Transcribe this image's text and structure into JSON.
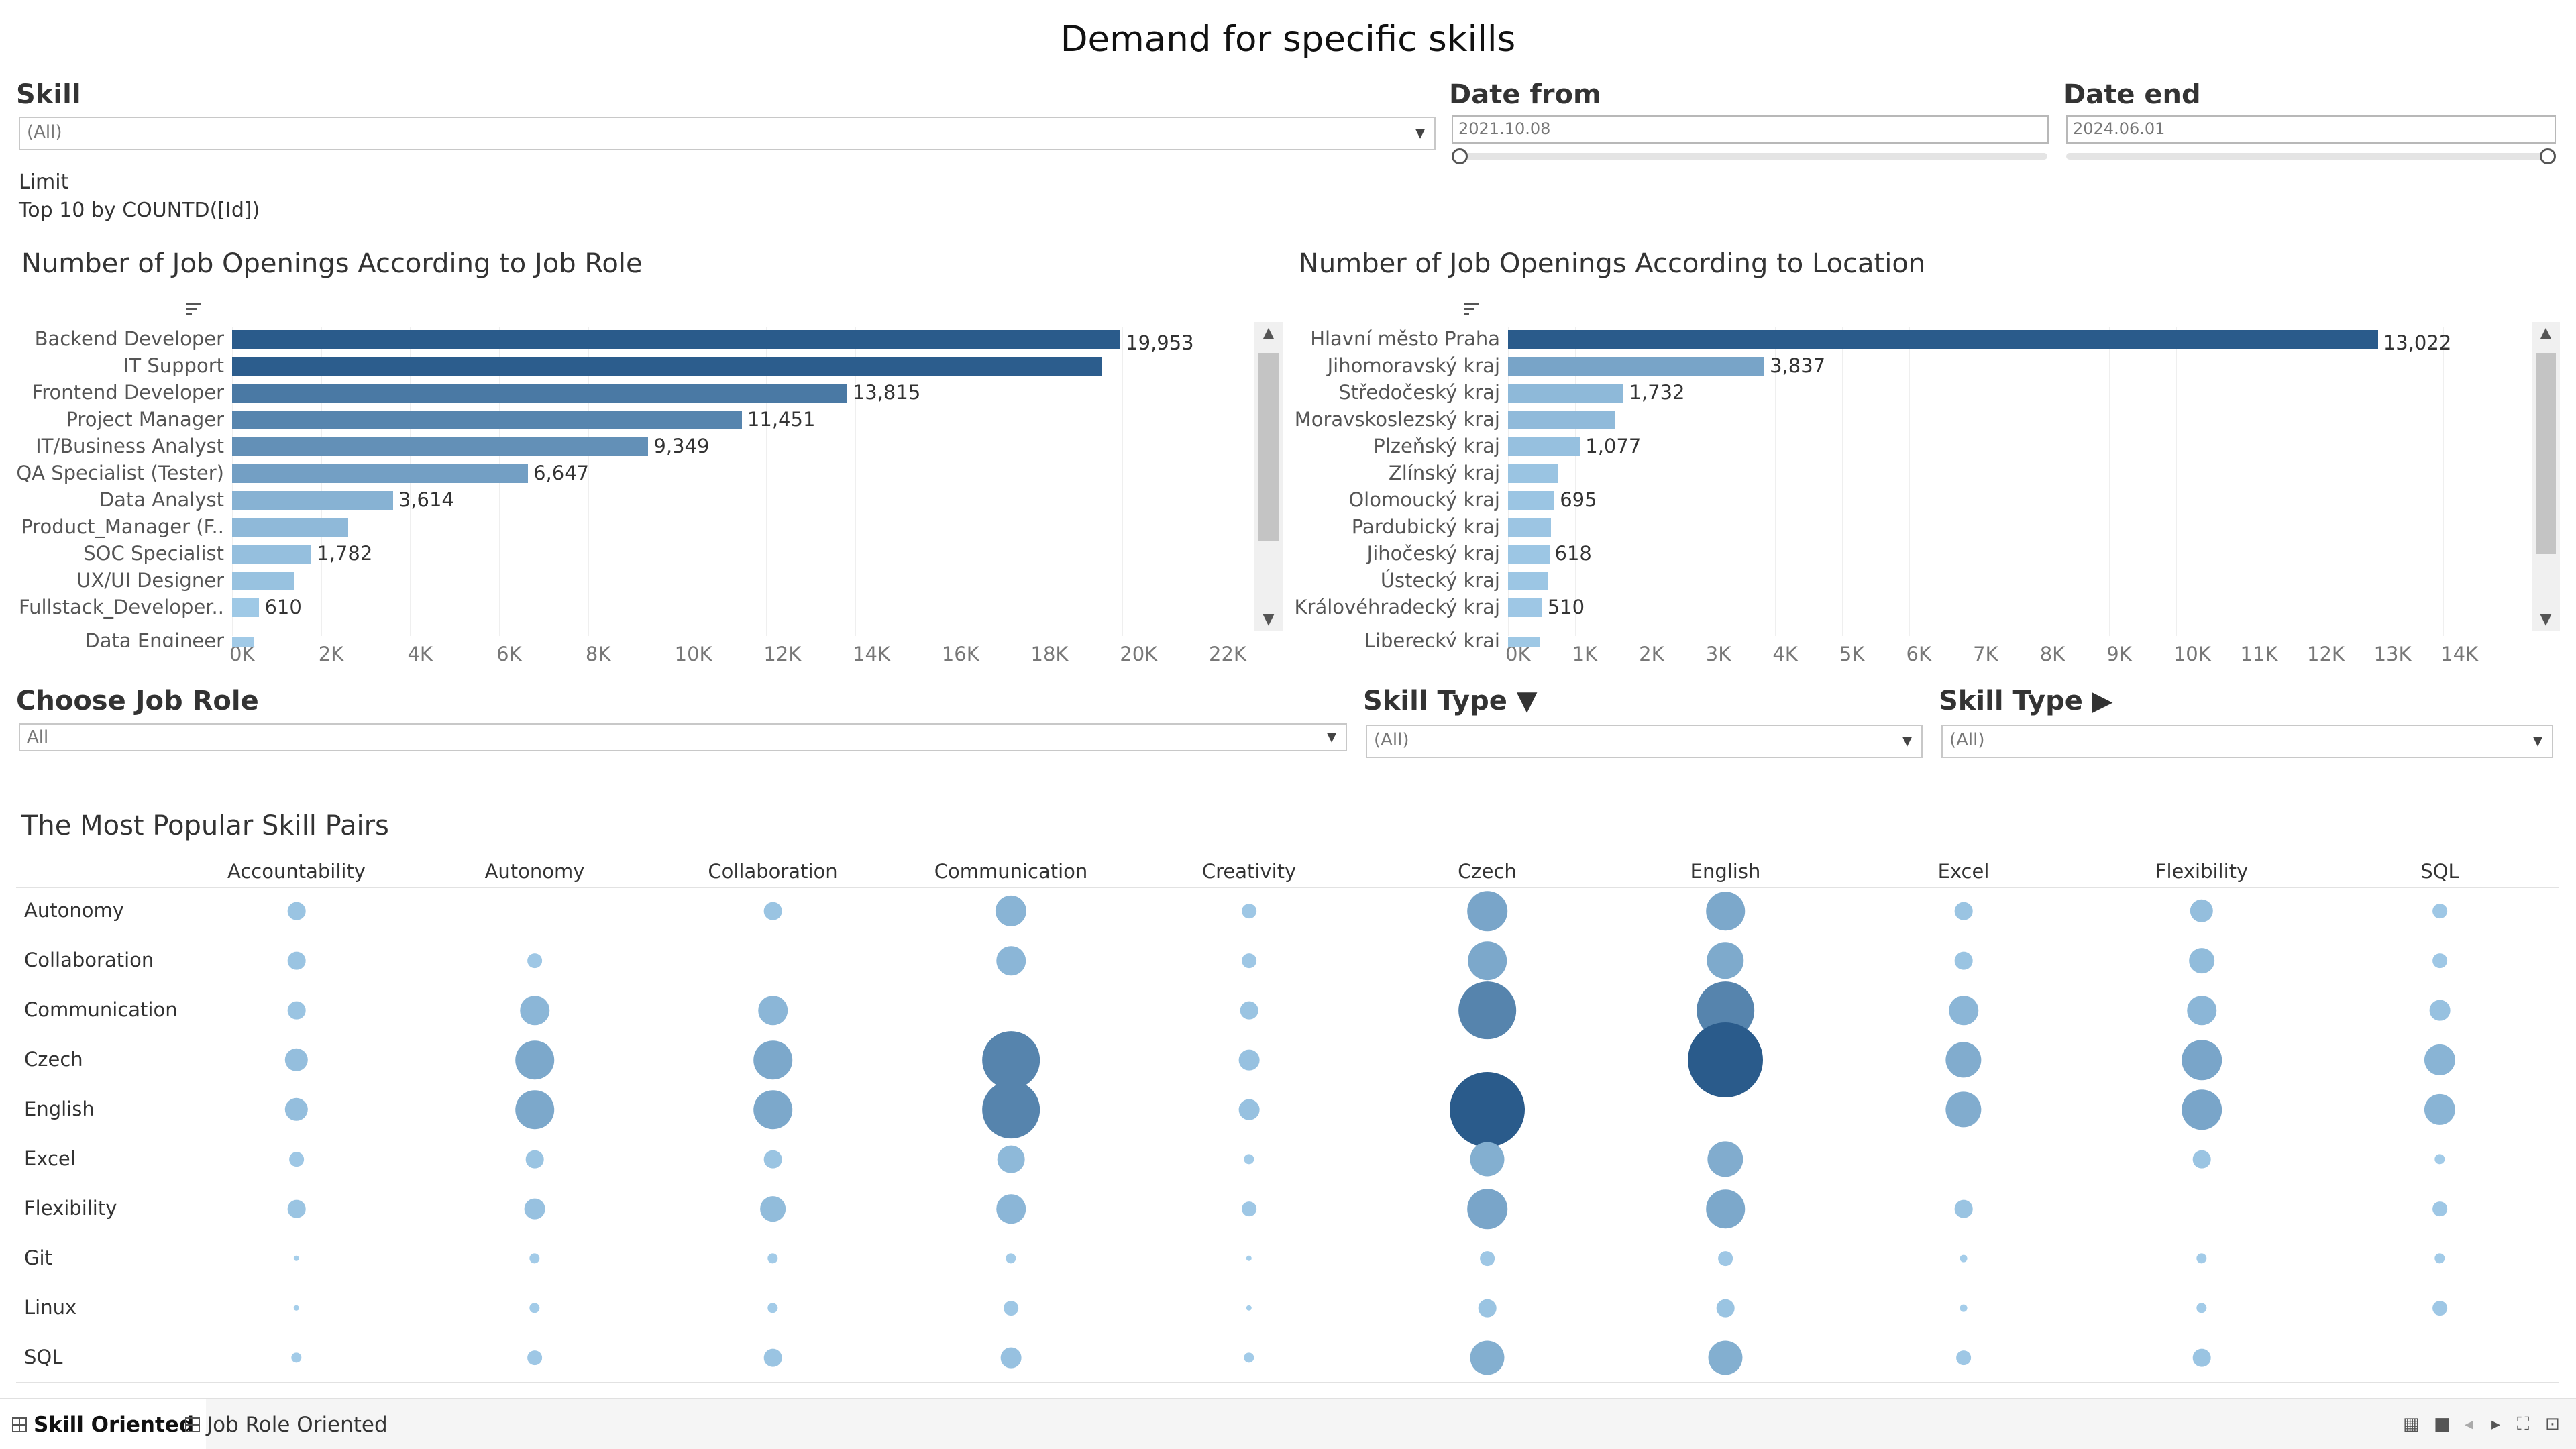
{
  "title": "Demand for specific skills",
  "filters": {
    "skill": {
      "label": "Skill",
      "value": "(All)"
    },
    "date_from": {
      "label": "Date from",
      "value": "2021.10.08"
    },
    "date_end": {
      "label": "Date end",
      "value": "2024.06.01"
    },
    "limit_label": "Limit",
    "limit_value": "Top 10 by COUNTD([Id])",
    "job_role": {
      "label": "Choose Job Role",
      "value": "All"
    },
    "skill_type_1": {
      "label": "Skill Type ▼",
      "value": "(All)"
    },
    "skill_type_2": {
      "label": "Skill Type ▶",
      "value": "(All)"
    }
  },
  "chart_data": [
    {
      "type": "bar",
      "title": "Number of Job Openings According to Job Role",
      "categories": [
        "Backend Developer",
        "IT Support",
        "Frontend Developer",
        "Project Manager",
        "IT/Business Analyst",
        "QA Specialist (Tester)",
        "Data Analyst",
        "Product_Manager (F..",
        "SOC Specialist",
        "UX/UI Designer",
        "Fullstack_Developer..",
        "Data Engineer"
      ],
      "values": [
        19953,
        19550,
        13815,
        11451,
        9349,
        6647,
        3614,
        2600,
        1782,
        1400,
        610,
        480
      ],
      "labels": [
        "19,953",
        "",
        "13,815",
        "11,451",
        "9,349",
        "6,647",
        "3,614",
        "",
        "1,782",
        "",
        "610",
        ""
      ],
      "x_ticks": [
        "0K",
        "2K",
        "4K",
        "6K",
        "8K",
        "10K",
        "12K",
        "14K",
        "16K",
        "18K",
        "20K",
        "22K"
      ],
      "xlim": [
        0,
        22000
      ]
    },
    {
      "type": "bar",
      "title": "Number of Job Openings According to Location",
      "categories": [
        "Hlavní město Praha",
        "Jihomoravský kraj",
        "Středočeský kraj",
        "Moravskoslezský kraj",
        "Plzeňský kraj",
        "Zlínský kraj",
        "Olomoucký kraj",
        "Pardubický kraj",
        "Jihočeský kraj",
        "Ústecký kraj",
        "Královéhradecký kraj",
        "Liberecký kraj"
      ],
      "values": [
        13022,
        3837,
        1732,
        1600,
        1077,
        740,
        695,
        640,
        618,
        600,
        510,
        480
      ],
      "labels": [
        "13,022",
        "3,837",
        "1,732",
        "",
        "1,077",
        "",
        "695",
        "",
        "618",
        "",
        "510",
        ""
      ],
      "x_ticks": [
        "0K",
        "1K",
        "2K",
        "3K",
        "4K",
        "5K",
        "6K",
        "7K",
        "8K",
        "9K",
        "10K",
        "11K",
        "12K",
        "13K",
        "14K"
      ],
      "xlim": [
        0,
        14500
      ]
    },
    {
      "type": "heatmap",
      "title": "The Most Popular Skill Pairs",
      "columns": [
        "Accountability",
        "Autonomy",
        "Collaboration",
        "Communication",
        "Creativity",
        "Czech",
        "English",
        "Excel",
        "Flexibility",
        "SQL"
      ],
      "rows": [
        "Autonomy",
        "Collaboration",
        "Communication",
        "Czech",
        "English",
        "Excel",
        "Flexibility",
        "Git",
        "Linux",
        "SQL"
      ],
      "values": [
        [
          3,
          0,
          3,
          9,
          2,
          15,
          14,
          3,
          5,
          2
        ],
        [
          3,
          2,
          0,
          8,
          2,
          14,
          13,
          3,
          6,
          2
        ],
        [
          3,
          8,
          8,
          0,
          3,
          31,
          31,
          8,
          8,
          4
        ],
        [
          5,
          14,
          14,
          31,
          4,
          0,
          53,
          12,
          15,
          9
        ],
        [
          5,
          14,
          14,
          31,
          4,
          53,
          0,
          12,
          15,
          9
        ],
        [
          2,
          3,
          3,
          7,
          1,
          11,
          12,
          0,
          3,
          1
        ],
        [
          3,
          4,
          6,
          8,
          2,
          15,
          14,
          3,
          0,
          2
        ],
        [
          0.3,
          1,
          1,
          1,
          0.3,
          2,
          2,
          0.5,
          1,
          1
        ],
        [
          0.3,
          1,
          1,
          2,
          0.3,
          3,
          3,
          0.5,
          1,
          2
        ],
        [
          1,
          2,
          3,
          4,
          1,
          11,
          11,
          2,
          3,
          0
        ]
      ]
    }
  ],
  "tabs": [
    "Skill Oriented",
    "Job Role Oriented"
  ]
}
